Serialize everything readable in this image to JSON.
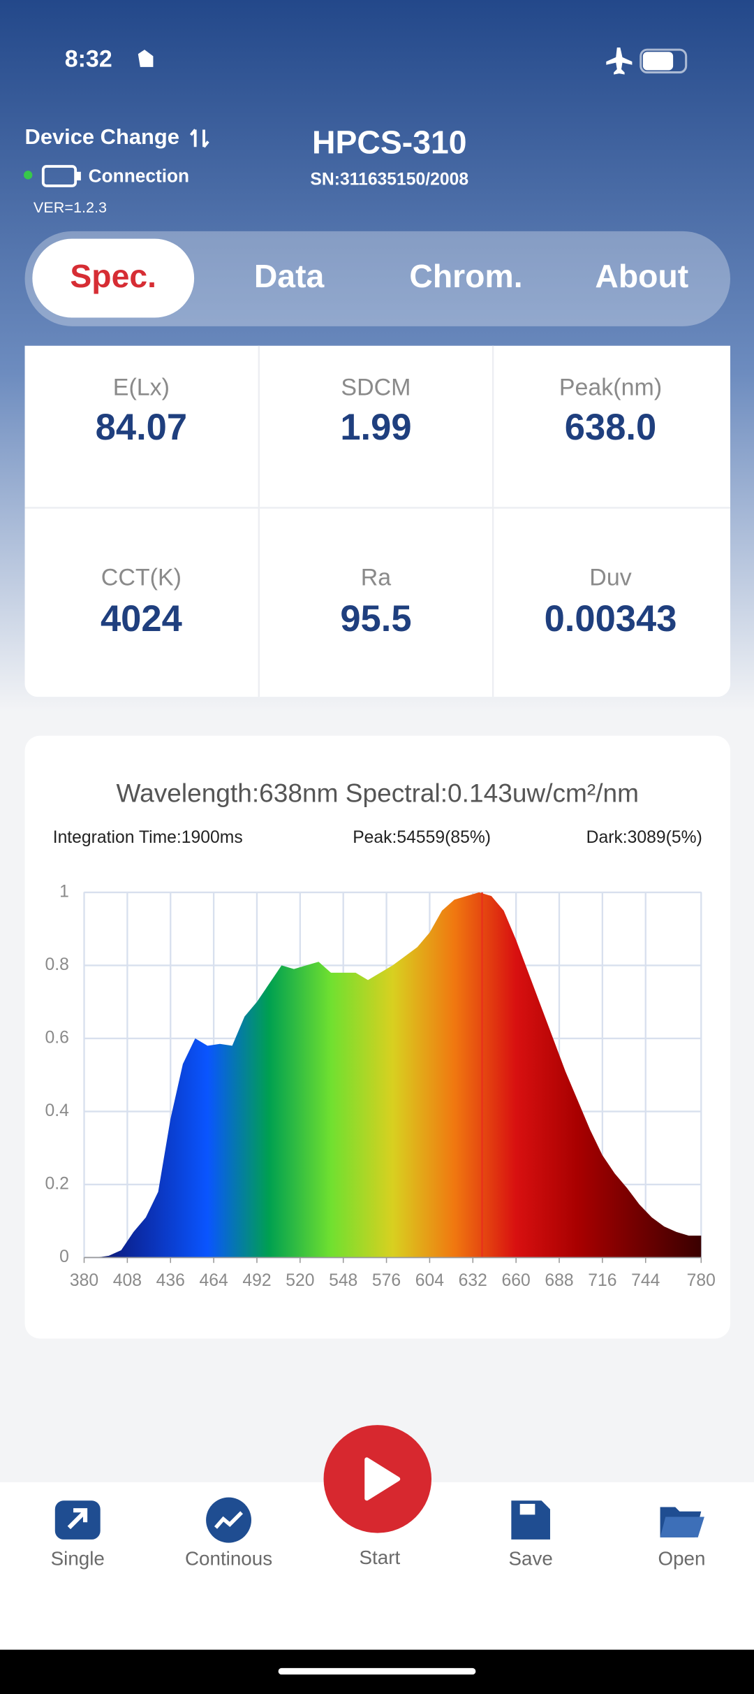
{
  "status_bar": {
    "time": "8:32"
  },
  "header": {
    "device_change": "Device Change",
    "connection": "Connection",
    "version": "VER=1.2.3",
    "model": "HPCS-310",
    "serial": "SN:311635150/2008"
  },
  "tabs": [
    "Spec.",
    "Data",
    "Chrom.",
    "About"
  ],
  "metrics": [
    {
      "label": "E(Lx)",
      "value": "84.07"
    },
    {
      "label": "SDCM",
      "value": "1.99"
    },
    {
      "label": "Peak(nm)",
      "value": "638.0"
    },
    {
      "label": "CCT(K)",
      "value": "4024"
    },
    {
      "label": "Ra",
      "value": "95.5"
    },
    {
      "label": "Duv",
      "value": "0.00343"
    }
  ],
  "chart_data": {
    "type": "area",
    "title": "Wavelength:638nm Spectral:0.143uw/cm²/nm",
    "annotations": [
      "Integration Time:1900ms",
      "Peak:54559(85%)",
      "Dark:3089(5%)"
    ],
    "x": [
      380,
      388,
      396,
      404,
      412,
      420,
      428,
      436,
      444,
      452,
      460,
      468,
      476,
      484,
      492,
      500,
      508,
      516,
      524,
      532,
      540,
      548,
      556,
      564,
      572,
      580,
      588,
      596,
      604,
      612,
      620,
      628,
      636,
      644,
      652,
      660,
      668,
      676,
      684,
      692,
      700,
      708,
      716,
      724,
      732,
      740,
      748,
      756,
      764,
      772,
      780
    ],
    "values": [
      0,
      0,
      0.005,
      0.02,
      0.07,
      0.11,
      0.18,
      0.38,
      0.53,
      0.6,
      0.58,
      0.585,
      0.58,
      0.66,
      0.7,
      0.75,
      0.8,
      0.79,
      0.8,
      0.81,
      0.78,
      0.78,
      0.78,
      0.76,
      0.78,
      0.8,
      0.825,
      0.85,
      0.89,
      0.95,
      0.98,
      0.99,
      1,
      0.99,
      0.95,
      0.87,
      0.78,
      0.69,
      0.6,
      0.51,
      0.43,
      0.35,
      0.28,
      0.23,
      0.19,
      0.145,
      0.11,
      0.085,
      0.07,
      0.06,
      0.06
    ],
    "xlim": [
      380,
      780
    ],
    "ylim": [
      0,
      1
    ],
    "xticks": [
      380,
      408,
      436,
      464,
      492,
      520,
      548,
      576,
      604,
      632,
      660,
      688,
      716,
      744,
      780
    ],
    "yticks": [
      0,
      0.2,
      0.4,
      0.6,
      0.8,
      1
    ],
    "grid": true,
    "fill_colors": [
      "#0c1060",
      "#0b2fb0",
      "#0a55ff",
      "#00a050",
      "#70e030",
      "#d8d020",
      "#f07810",
      "#d81010",
      "#a80000",
      "#700000",
      "#3a0000"
    ],
    "marker": {
      "x": 638,
      "color": "#e8301c"
    }
  },
  "nav": [
    "Single",
    "Continous",
    "Start",
    "Save",
    "Open"
  ]
}
